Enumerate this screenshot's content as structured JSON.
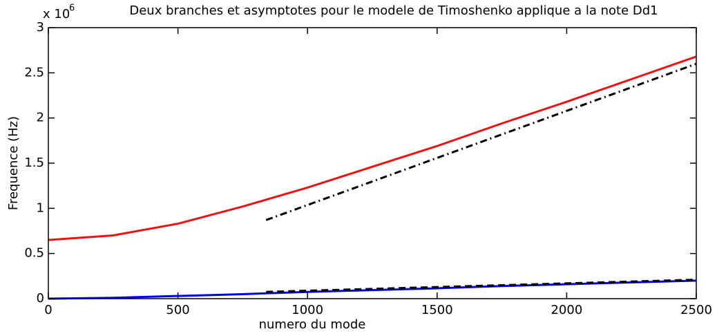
{
  "chart_data": {
    "type": "line",
    "title": "Deux branches et asymptotes pour le modele de Timoshenko applique a la note Dd1",
    "x_label": "numero du mode",
    "y_label": "Frequence (Hz)",
    "y_multiplier": {
      "base": "x 10",
      "exponent": "6"
    },
    "xlim": [
      0,
      2500
    ],
    "xticks": [
      0,
      500,
      1000,
      1500,
      2000,
      2500
    ],
    "ylim": [
      0,
      3
    ],
    "yticks": [
      0,
      0.5,
      1,
      1.5,
      2,
      2.5,
      3
    ],
    "grid": false,
    "series": [
      {
        "color": "#ee1111",
        "dash": "solid",
        "x": [
          0,
          250,
          500,
          750,
          1000,
          1250,
          1500,
          1750,
          2000,
          2250,
          2500
        ],
        "values": [
          0.65,
          0.7,
          0.83,
          1.02,
          1.23,
          1.46,
          1.69,
          1.94,
          2.18,
          2.43,
          2.68
        ]
      },
      {
        "color": "#000000",
        "dash": "dashdot",
        "x": [
          840,
          2500
        ],
        "values": [
          0.87,
          2.6
        ]
      },
      {
        "color": "#0000ee",
        "dash": "solid",
        "x": [
          0,
          250,
          500,
          750,
          1000,
          1250,
          1500,
          1750,
          2000,
          2250,
          2500
        ],
        "values": [
          0,
          0.01,
          0.03,
          0.05,
          0.075,
          0.095,
          0.115,
          0.14,
          0.16,
          0.18,
          0.2
        ]
      },
      {
        "color": "#000000",
        "dash": "dashed",
        "x": [
          840,
          2500
        ],
        "values": [
          0.075,
          0.21
        ]
      }
    ]
  }
}
